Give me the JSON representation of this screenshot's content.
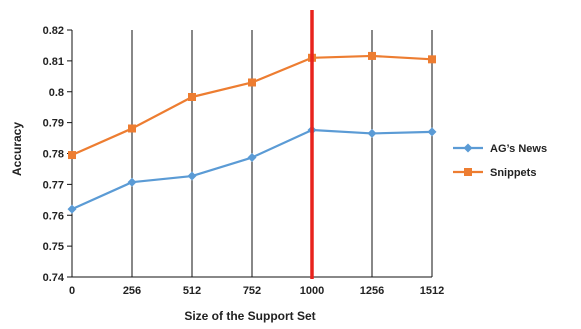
{
  "chart_data": {
    "type": "line",
    "title": "",
    "xlabel": "Size of the Support Set",
    "ylabel": "Accuracy",
    "categories": [
      "0",
      "256",
      "512",
      "752",
      "1000",
      "1256",
      "1512"
    ],
    "ylim": [
      0.74,
      0.82
    ],
    "yticks": [
      "0.74",
      "0.75",
      "0.76",
      "0.77",
      "0.78",
      "0.79",
      "0.8",
      "0.81",
      "0.82"
    ],
    "grid": "vertical",
    "legend_position": "right",
    "highlight_category": "1000",
    "highlight_color": "#e8231d",
    "series": [
      {
        "name": "AG’s News",
        "color": "#5b9bd5",
        "marker": "diamond",
        "values": [
          0.762,
          0.7707,
          0.7727,
          0.7787,
          0.7876,
          0.7865,
          0.787
        ]
      },
      {
        "name": "Snippets",
        "color": "#ed7d31",
        "marker": "square",
        "values": [
          0.7795,
          0.7881,
          0.7983,
          0.803,
          0.811,
          0.8116,
          0.8105
        ]
      }
    ]
  }
}
